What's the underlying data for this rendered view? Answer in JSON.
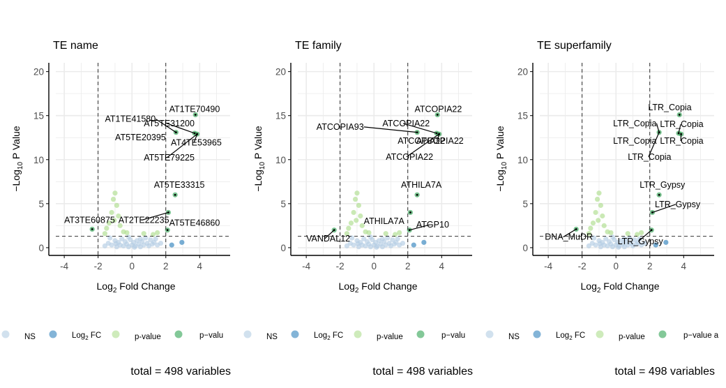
{
  "chart_data": [
    {
      "type": "scatter",
      "title": "TE name",
      "xlabel_base": "Log",
      "xlabel_sub": "2",
      "xlabel_rest": " Fold Change",
      "ylabel_pre": "−Log",
      "ylabel_sub": "10",
      "ylabel_rest": " P Value",
      "xlim": [
        -4.5,
        5.8
      ],
      "ylim": [
        -0.8,
        21
      ],
      "xticks": [
        -4,
        -2,
        0,
        2,
        4
      ],
      "yticks": [
        0,
        5,
        10,
        15,
        20
      ],
      "grid": true,
      "fc_cutoffs": [
        -2,
        2
      ],
      "p_cutoff": 1.3,
      "footer": "total = 498 variables",
      "points": {
        "both": [
          [
            3.75,
            15.1
          ],
          [
            2.6,
            13.1
          ],
          [
            3.7,
            13.0
          ],
          [
            3.85,
            12.9
          ],
          [
            2.55,
            6.0
          ],
          [
            2.15,
            4.0
          ],
          [
            2.1,
            2.0
          ],
          [
            -2.35,
            2.1
          ]
        ],
        "log2fc": [
          [
            2.35,
            0.3
          ],
          [
            2.95,
            0.6
          ]
        ],
        "pvalue": [
          [
            -1.0,
            6.2
          ],
          [
            -1.1,
            5.5
          ],
          [
            -0.9,
            4.8
          ],
          [
            -1.2,
            4.0
          ],
          [
            -0.8,
            3.6
          ],
          [
            -1.05,
            3.1
          ],
          [
            -1.35,
            2.8
          ],
          [
            -0.7,
            2.5
          ],
          [
            -1.5,
            2.2
          ],
          [
            -0.5,
            1.8
          ],
          [
            -0.3,
            1.7
          ],
          [
            0.7,
            1.6
          ],
          [
            1.5,
            1.7
          ],
          [
            1.25,
            1.5
          ],
          [
            -1.6,
            1.6
          ]
        ],
        "ns": [
          [
            -1.6,
            0.2
          ],
          [
            -1.4,
            0.5
          ],
          [
            -1.2,
            0.3
          ],
          [
            -1.0,
            0.8
          ],
          [
            -0.9,
            0.1
          ],
          [
            -0.8,
            0.6
          ],
          [
            -0.7,
            0.3
          ],
          [
            -0.6,
            1.0
          ],
          [
            -0.5,
            0.2
          ],
          [
            -0.4,
            0.7
          ],
          [
            -0.3,
            0.4
          ],
          [
            -0.2,
            0.1
          ],
          [
            -0.1,
            0.9
          ],
          [
            0.0,
            0.3
          ],
          [
            0.1,
            0.6
          ],
          [
            0.2,
            0.2
          ],
          [
            0.3,
            0.8
          ],
          [
            0.4,
            0.4
          ],
          [
            0.5,
            0.1
          ],
          [
            0.6,
            0.7
          ],
          [
            0.7,
            0.3
          ],
          [
            0.8,
            1.1
          ],
          [
            0.9,
            0.5
          ],
          [
            1.0,
            0.2
          ],
          [
            1.1,
            0.9
          ],
          [
            1.2,
            0.4
          ],
          [
            1.3,
            0.6
          ],
          [
            1.5,
            0.3
          ],
          [
            1.7,
            0.5
          ],
          [
            -1.3,
            1.1
          ],
          [
            -0.2,
            1.2
          ],
          [
            0.5,
            1.0
          ],
          [
            1.4,
            1.0
          ],
          [
            -0.95,
            0.45
          ],
          [
            0.15,
            0.05
          ]
        ]
      },
      "labels": [
        {
          "text": "AT1TE70490",
          "tx": 2.2,
          "ty": 15.4,
          "anchor": "start",
          "px": 3.75,
          "py": 15.1,
          "line": false
        },
        {
          "text": "AT1TE41580",
          "tx": 1.4,
          "ty": 14.3,
          "anchor": "end",
          "px": 2.6,
          "py": 13.1,
          "line": true
        },
        {
          "text": "AT5TE31200",
          "tx": 0.7,
          "ty": 13.8,
          "anchor": "start",
          "px": 3.7,
          "py": 13.0,
          "line": true
        },
        {
          "text": "AT5TE20395",
          "tx": 2.0,
          "ty": 12.2,
          "anchor": "end",
          "px": 2.6,
          "py": 13.1,
          "line": false
        },
        {
          "text": "AT4TE53965",
          "tx": 2.3,
          "ty": 11.6,
          "anchor": "start",
          "px": 3.85,
          "py": 12.9,
          "line": true
        },
        {
          "text": "AT5TE79225",
          "tx": 0.7,
          "ty": 9.9,
          "anchor": "start",
          "px": 3.85,
          "py": 12.9,
          "line": true
        },
        {
          "text": "AT5TE33315",
          "tx": 1.3,
          "ty": 6.8,
          "anchor": "start",
          "px": 2.55,
          "py": 6.0,
          "line": false
        },
        {
          "text": "AT3TE60875",
          "tx": -4.0,
          "ty": 2.8,
          "anchor": "start",
          "px": -2.35,
          "py": 2.1,
          "line": false
        },
        {
          "text": "AT2TE22235",
          "tx": -0.8,
          "ty": 2.8,
          "anchor": "start",
          "px": 2.15,
          "py": 4.0,
          "line": true
        },
        {
          "text": "AT5TE46860",
          "tx": 2.2,
          "ty": 2.5,
          "anchor": "start",
          "px": 2.1,
          "py": 2.0,
          "line": false
        }
      ]
    },
    {
      "type": "scatter",
      "title": "TE family",
      "xlabel_base": "Log",
      "xlabel_sub": "2",
      "xlabel_rest": " Fold Change",
      "ylabel_pre": "−Log",
      "ylabel_sub": "10",
      "ylabel_rest": " P Value",
      "xlim": [
        -4.5,
        5.8
      ],
      "ylim": [
        -0.8,
        21
      ],
      "xticks": [
        -4,
        -2,
        0,
        2,
        4
      ],
      "yticks": [
        0,
        5,
        10,
        15,
        20
      ],
      "grid": true,
      "fc_cutoffs": [
        -2,
        2
      ],
      "p_cutoff": 1.3,
      "footer": "total = 498 variables",
      "points": {
        "both": [
          [
            3.75,
            15.1
          ],
          [
            2.55,
            13.1
          ],
          [
            3.7,
            13.0
          ],
          [
            3.85,
            12.9
          ],
          [
            2.55,
            6.0
          ],
          [
            2.15,
            4.0
          ],
          [
            2.1,
            2.0
          ],
          [
            -2.35,
            2.0
          ]
        ],
        "log2fc": [
          [
            2.35,
            0.3
          ],
          [
            2.95,
            0.6
          ]
        ],
        "pvalue": [
          [
            -1.0,
            6.2
          ],
          [
            -1.1,
            5.5
          ],
          [
            -0.9,
            4.8
          ],
          [
            -1.2,
            4.0
          ],
          [
            -0.8,
            3.6
          ],
          [
            -1.05,
            3.1
          ],
          [
            -1.35,
            2.8
          ],
          [
            -0.7,
            2.5
          ],
          [
            -1.5,
            2.2
          ],
          [
            -0.5,
            1.8
          ],
          [
            -0.3,
            1.7
          ],
          [
            0.7,
            1.6
          ],
          [
            1.5,
            1.7
          ],
          [
            1.25,
            1.5
          ],
          [
            -1.6,
            1.6
          ]
        ],
        "ns": [
          [
            -1.6,
            0.2
          ],
          [
            -1.4,
            0.5
          ],
          [
            -1.2,
            0.3
          ],
          [
            -1.0,
            0.8
          ],
          [
            -0.9,
            0.1
          ],
          [
            -0.8,
            0.6
          ],
          [
            -0.7,
            0.3
          ],
          [
            -0.6,
            1.0
          ],
          [
            -0.5,
            0.2
          ],
          [
            -0.4,
            0.7
          ],
          [
            -0.3,
            0.4
          ],
          [
            -0.2,
            0.1
          ],
          [
            -0.1,
            0.9
          ],
          [
            0.0,
            0.3
          ],
          [
            0.1,
            0.6
          ],
          [
            0.2,
            0.2
          ],
          [
            0.3,
            0.8
          ],
          [
            0.4,
            0.4
          ],
          [
            0.5,
            0.1
          ],
          [
            0.6,
            0.7
          ],
          [
            0.7,
            0.3
          ],
          [
            0.8,
            1.1
          ],
          [
            0.9,
            0.5
          ],
          [
            1.0,
            0.2
          ],
          [
            1.1,
            0.9
          ],
          [
            1.2,
            0.4
          ],
          [
            1.3,
            0.6
          ],
          [
            1.5,
            0.3
          ],
          [
            1.7,
            0.5
          ],
          [
            -1.3,
            1.1
          ],
          [
            -0.2,
            1.2
          ],
          [
            0.5,
            1.0
          ],
          [
            1.4,
            1.0
          ],
          [
            -0.95,
            0.45
          ],
          [
            0.15,
            0.05
          ]
        ]
      },
      "labels": [
        {
          "text": "ATCOPIA22",
          "tx": 2.4,
          "ty": 15.4,
          "anchor": "start",
          "px": 3.75,
          "py": 15.1,
          "line": false
        },
        {
          "text": "ATCOPIA93",
          "tx": -0.6,
          "ty": 13.4,
          "anchor": "end",
          "px": 2.55,
          "py": 13.1,
          "line": true
        },
        {
          "text": "ATCOPIA22",
          "tx": 0.5,
          "ty": 13.8,
          "anchor": "start",
          "px": 3.7,
          "py": 13.0,
          "line": true
        },
        {
          "text": "ATCOPIA22",
          "tx": 1.4,
          "ty": 11.8,
          "anchor": "start",
          "px": 3.85,
          "py": 12.9,
          "line": false
        },
        {
          "text": "ATCOPIA22",
          "tx": 2.5,
          "ty": 11.8,
          "anchor": "start",
          "px": 3.85,
          "py": 12.9,
          "line": true
        },
        {
          "text": "ATCOPIA22",
          "tx": 0.7,
          "ty": 10.0,
          "anchor": "start",
          "px": 3.85,
          "py": 12.9,
          "line": true
        },
        {
          "text": "ATHILA7A",
          "tx": 1.6,
          "ty": 6.8,
          "anchor": "start",
          "px": 2.55,
          "py": 6.0,
          "line": false
        },
        {
          "text": "VANDAL12",
          "tx": -4.0,
          "ty": 0.7,
          "anchor": "start",
          "px": -2.35,
          "py": 2.0,
          "line": true
        },
        {
          "text": "ATHILA7A",
          "tx": -0.6,
          "ty": 2.7,
          "anchor": "start",
          "px": 2.15,
          "py": 4.0,
          "line": false
        },
        {
          "text": "ATGP10",
          "tx": 2.5,
          "ty": 2.3,
          "anchor": "start",
          "px": 2.1,
          "py": 2.0,
          "line": true
        }
      ]
    },
    {
      "type": "scatter",
      "title": "TE superfamily",
      "xlabel_base": "Log",
      "xlabel_sub": "2",
      "xlabel_rest": " Fold Change",
      "ylabel_pre": "−Log",
      "ylabel_sub": "10",
      "ylabel_rest": " P Value",
      "xlim": [
        -4.5,
        5.8
      ],
      "ylim": [
        -0.8,
        21
      ],
      "xticks": [
        -4,
        -2,
        0,
        2,
        4
      ],
      "yticks": [
        0,
        5,
        10,
        15,
        20
      ],
      "grid": true,
      "fc_cutoffs": [
        -2,
        2
      ],
      "p_cutoff": 1.3,
      "footer": "total = 498 variables",
      "points": {
        "both": [
          [
            3.75,
            15.1
          ],
          [
            2.55,
            13.1
          ],
          [
            3.7,
            13.0
          ],
          [
            3.85,
            12.9
          ],
          [
            2.55,
            6.0
          ],
          [
            2.15,
            4.0
          ],
          [
            2.1,
            2.0
          ],
          [
            -2.35,
            2.1
          ]
        ],
        "log2fc": [
          [
            2.35,
            0.3
          ],
          [
            2.95,
            0.6
          ]
        ],
        "pvalue": [
          [
            -1.0,
            6.2
          ],
          [
            -1.1,
            5.5
          ],
          [
            -0.9,
            4.8
          ],
          [
            -1.2,
            4.0
          ],
          [
            -0.8,
            3.6
          ],
          [
            -1.05,
            3.1
          ],
          [
            -1.35,
            2.8
          ],
          [
            -0.7,
            2.5
          ],
          [
            -1.5,
            2.2
          ],
          [
            -0.5,
            1.8
          ],
          [
            -0.3,
            1.7
          ],
          [
            0.7,
            1.6
          ],
          [
            1.5,
            1.7
          ],
          [
            1.25,
            1.5
          ],
          [
            -1.6,
            1.6
          ]
        ],
        "ns": [
          [
            -1.6,
            0.2
          ],
          [
            -1.4,
            0.5
          ],
          [
            -1.2,
            0.3
          ],
          [
            -1.0,
            0.8
          ],
          [
            -0.9,
            0.1
          ],
          [
            -0.8,
            0.6
          ],
          [
            -0.7,
            0.3
          ],
          [
            -0.6,
            1.0
          ],
          [
            -0.5,
            0.2
          ],
          [
            -0.4,
            0.7
          ],
          [
            -0.3,
            0.4
          ],
          [
            -0.2,
            0.1
          ],
          [
            -0.1,
            0.9
          ],
          [
            0.0,
            0.3
          ],
          [
            0.1,
            0.6
          ],
          [
            0.2,
            0.2
          ],
          [
            0.3,
            0.8
          ],
          [
            0.4,
            0.4
          ],
          [
            0.5,
            0.1
          ],
          [
            0.6,
            0.7
          ],
          [
            0.7,
            0.3
          ],
          [
            0.8,
            1.1
          ],
          [
            0.9,
            0.5
          ],
          [
            1.0,
            0.2
          ],
          [
            1.1,
            0.9
          ],
          [
            1.2,
            0.4
          ],
          [
            1.3,
            0.6
          ],
          [
            1.5,
            0.3
          ],
          [
            1.7,
            0.5
          ],
          [
            -1.3,
            1.1
          ],
          [
            -0.2,
            1.2
          ],
          [
            0.5,
            1.0
          ],
          [
            1.4,
            1.0
          ],
          [
            -0.95,
            0.45
          ],
          [
            0.15,
            0.05
          ]
        ]
      },
      "labels": [
        {
          "text": "LTR_Copia",
          "tx": 1.9,
          "ty": 15.6,
          "anchor": "start",
          "px": 3.75,
          "py": 15.1,
          "line": false
        },
        {
          "text": "LTR_Copia",
          "tx": 2.4,
          "ty": 13.8,
          "anchor": "end",
          "px": 2.55,
          "py": 13.1,
          "line": true
        },
        {
          "text": "LTR_Copia",
          "tx": 2.6,
          "ty": 13.7,
          "anchor": "start",
          "px": 3.7,
          "py": 13.0,
          "line": true
        },
        {
          "text": "LTR_Copia",
          "tx": 2.4,
          "ty": 11.8,
          "anchor": "end",
          "px": 2.55,
          "py": 13.1,
          "line": false
        },
        {
          "text": "LTR_Copia",
          "tx": 2.6,
          "ty": 11.8,
          "anchor": "start",
          "px": 3.85,
          "py": 12.9,
          "line": true
        },
        {
          "text": "LTR_Copia",
          "tx": 0.7,
          "ty": 10.0,
          "anchor": "start",
          "px": 2.55,
          "py": 13.1,
          "line": true
        },
        {
          "text": "LTR_Gypsy",
          "tx": 1.4,
          "ty": 6.8,
          "anchor": "start",
          "px": 2.55,
          "py": 6.0,
          "line": false
        },
        {
          "text": "LTR_Gypsy",
          "tx": 2.3,
          "ty": 4.6,
          "anchor": "start",
          "px": 2.15,
          "py": 4.0,
          "line": true
        },
        {
          "text": "DNA_MuDR",
          "tx": -4.2,
          "ty": 0.9,
          "anchor": "start",
          "px": -2.35,
          "py": 2.1,
          "line": true
        },
        {
          "text": "LTR_Gypsy",
          "tx": 0.1,
          "ty": 0.4,
          "anchor": "start",
          "px": 2.1,
          "py": 2.0,
          "line": true
        }
      ]
    }
  ],
  "legend": {
    "entries": [
      {
        "key": "ns",
        "label": "NS"
      },
      {
        "key": "log2fc",
        "label_base": "Log",
        "label_sub": "2",
        "label_rest": " FC"
      },
      {
        "key": "pvalue",
        "label": "p-value"
      },
      {
        "key": "both",
        "label": "p−valu"
      }
    ],
    "last_label_variants": [
      "p−valu",
      "p−valu",
      "p−value a"
    ]
  },
  "colors": {
    "ns": "#b3cde3",
    "log2fc": "#3182bd",
    "pvalue": "#addd8e",
    "both": "#31a354",
    "axis": "#000000",
    "grid": "#ebebeb",
    "tick_text": "#4d4d4d",
    "cutoff": "#000000"
  }
}
